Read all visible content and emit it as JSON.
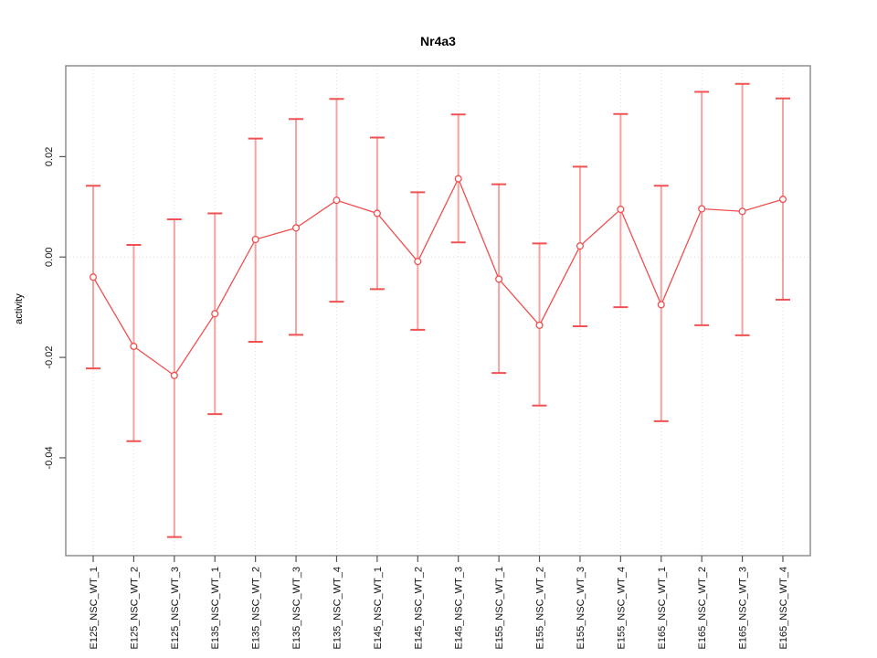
{
  "figure": {
    "title": "Nr4a3",
    "ylabel": "activity"
  },
  "chart_data": {
    "type": "line",
    "title": "Nr4a3",
    "xlabel": "",
    "ylabel": "activity",
    "legend": "none",
    "grid": "dotted vertical gridline at every category; dotted horizontal line at y=0",
    "error_bars": true,
    "categories": [
      "E125_NSC_WT_1",
      "E125_NSC_WT_2",
      "E125_NSC_WT_3",
      "E135_NSC_WT_1",
      "E135_NSC_WT_2",
      "E135_NSC_WT_3",
      "E135_NSC_WT_4",
      "E145_NSC_WT_1",
      "E145_NSC_WT_2",
      "E145_NSC_WT_3",
      "E155_NSC_WT_1",
      "E155_NSC_WT_2",
      "E155_NSC_WT_3",
      "E155_NSC_WT_4",
      "E165_NSC_WT_1",
      "E165_NSC_WT_2",
      "E165_NSC_WT_3",
      "E165_NSC_WT_4"
    ],
    "series": [
      {
        "name": "activity",
        "values": [
          -0.004,
          -0.0178,
          -0.0236,
          -0.0113,
          0.0035,
          0.0058,
          0.0113,
          0.0087,
          -0.0009,
          0.0156,
          -0.0044,
          -0.0136,
          0.0022,
          0.0095,
          -0.0095,
          0.0096,
          0.0091,
          0.0115
        ],
        "upper": [
          0.0142,
          0.0024,
          0.0075,
          0.0087,
          0.0236,
          0.0275,
          0.0315,
          0.0238,
          0.0129,
          0.0284,
          0.0145,
          0.0027,
          0.018,
          0.0285,
          0.0142,
          0.0329,
          0.0345,
          0.0316
        ],
        "lower": [
          -0.0222,
          -0.0367,
          -0.0558,
          -0.0313,
          -0.0169,
          -0.0155,
          -0.0089,
          -0.0064,
          -0.0145,
          0.0029,
          -0.0231,
          -0.0296,
          -0.0138,
          -0.01,
          -0.0327,
          -0.0136,
          -0.0156,
          -0.0085
        ]
      }
    ],
    "ylim": [
      -0.0595,
      0.0381
    ],
    "yticks": [
      0.02,
      0.0,
      -0.02,
      -0.04
    ],
    "ytick_labels": [
      "0.02",
      "0.00",
      "-0.02",
      "-0.04"
    ],
    "colors": {
      "series_line": "#f04f4f",
      "point_stroke": "#f04f4f",
      "point_fill": "#ffffff",
      "error_bar_line": "#f5a2a2",
      "error_bar_cap": "#f05252",
      "gridline": "#dcdcdc",
      "plot_border": "#878787",
      "tick_mark": "#555555",
      "tick_text": "#111111"
    }
  }
}
